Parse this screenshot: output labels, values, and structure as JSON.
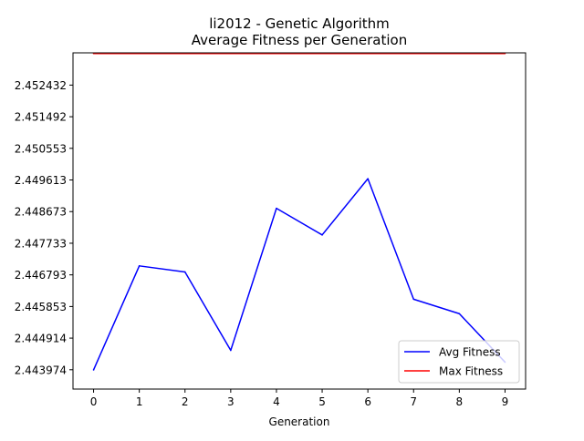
{
  "chart_data": {
    "type": "line",
    "title": "li2012 - Genetic Algorithm",
    "subtitle": "Average Fitness per Generation",
    "xlabel": "Generation",
    "ylabel": "",
    "x": [
      0,
      1,
      2,
      3,
      4,
      5,
      6,
      7,
      8,
      9
    ],
    "x_tick_labels": [
      "0",
      "1",
      "2",
      "3",
      "4",
      "5",
      "6",
      "7",
      "8",
      "9"
    ],
    "y_tick_values": [
      2.443974,
      2.444914,
      2.445853,
      2.446793,
      2.447733,
      2.448673,
      2.449613,
      2.450553,
      2.451492,
      2.452432
    ],
    "y_tick_labels": [
      "2.443974",
      "2.444914",
      "2.445853",
      "2.446793",
      "2.447733",
      "2.448673",
      "2.449613",
      "2.450553",
      "2.451492",
      "2.452432"
    ],
    "xlim": [
      -0.45,
      9.45
    ],
    "ylim": [
      2.4434,
      2.45339
    ],
    "series": [
      {
        "name": "Avg Fitness",
        "color": "#0000ff",
        "values": [
          2.44397,
          2.44706,
          2.44688,
          2.44455,
          2.44877,
          2.44798,
          2.44965,
          2.44607,
          2.44564,
          2.4442
        ]
      },
      {
        "name": "Max Fitness",
        "color": "#ff0000",
        "values": [
          2.45337,
          2.45337,
          2.45337,
          2.45337,
          2.45337,
          2.45337,
          2.45337,
          2.45337,
          2.45337,
          2.45337
        ]
      }
    ],
    "grid": false,
    "legend_position": "lower right"
  }
}
